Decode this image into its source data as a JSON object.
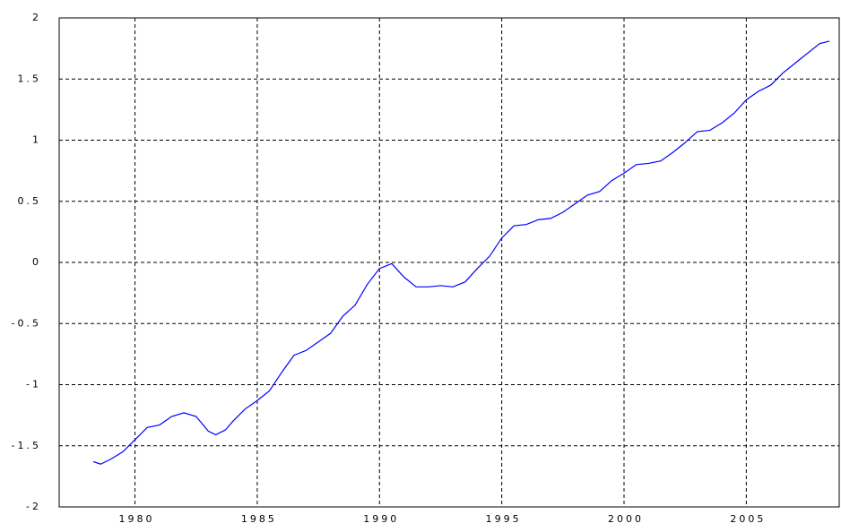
{
  "chart_data": {
    "type": "line",
    "x": [
      1978.3,
      1978.6,
      1979,
      1979.5,
      1980,
      1980.5,
      1981,
      1981.5,
      1982,
      1982.5,
      1983,
      1983.3,
      1983.7,
      1984,
      1984.5,
      1985,
      1985.5,
      1986,
      1986.5,
      1987,
      1987.5,
      1988,
      1988.5,
      1989,
      1989.5,
      1990,
      1990.5,
      1991,
      1991.5,
      1992,
      1992.5,
      1993,
      1993.5,
      1994,
      1994.5,
      1995,
      1995.5,
      1996,
      1996.5,
      1997,
      1997.5,
      1998,
      1998.5,
      1999,
      1999.5,
      2000,
      2000.5,
      2001,
      2001.5,
      2002,
      2002.5,
      2003,
      2003.5,
      2004,
      2004.5,
      2005,
      2005.5,
      2006,
      2006.5,
      2007,
      2007.5,
      2008,
      2008.4
    ],
    "series": [
      {
        "color": "#0000ff",
        "values": [
          -1.63,
          -1.65,
          -1.61,
          -1.55,
          -1.45,
          -1.35,
          -1.33,
          -1.26,
          -1.23,
          -1.26,
          -1.38,
          -1.41,
          -1.37,
          -1.3,
          -1.2,
          -1.13,
          -1.05,
          -0.9,
          -0.76,
          -0.72,
          -0.65,
          -0.58,
          -0.44,
          -0.35,
          -0.18,
          -0.05,
          -0.01,
          -0.12,
          -0.2,
          -0.2,
          -0.19,
          -0.2,
          -0.16,
          -0.05,
          0.05,
          0.2,
          0.3,
          0.31,
          0.35,
          0.36,
          0.41,
          0.48,
          0.55,
          0.58,
          0.67,
          0.73,
          0.8,
          0.81,
          0.83,
          0.9,
          0.98,
          1.07,
          1.08,
          1.14,
          1.22,
          1.33,
          1.4,
          1.45,
          1.55,
          1.63,
          1.71,
          1.79,
          1.81
        ]
      }
    ],
    "xlim": [
      1976.9,
      2008.8
    ],
    "xticks": [
      1980,
      1985,
      1990,
      1995,
      2000,
      2005
    ],
    "ylim": [
      -2,
      2
    ],
    "yticks": [
      -2,
      -1.5,
      -1,
      -0.5,
      0,
      0.5,
      1,
      1.5,
      2
    ],
    "grid": true
  }
}
